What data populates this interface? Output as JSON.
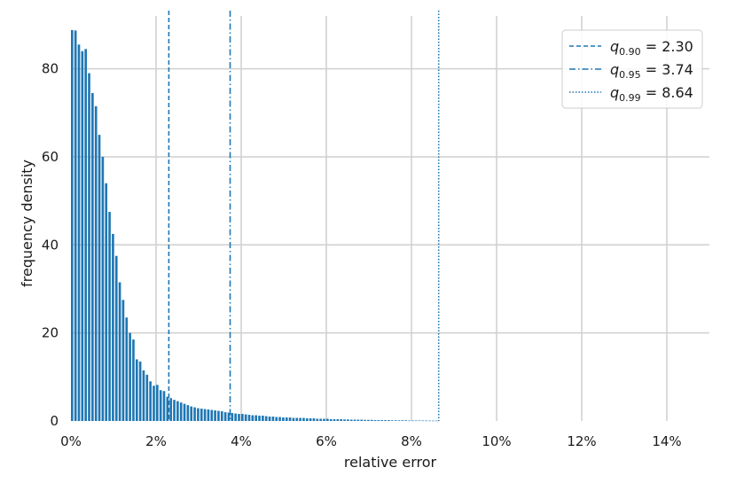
{
  "chart_data": {
    "type": "bar",
    "xlabel": "relative error",
    "ylabel": "frequency density",
    "xlim": [
      0,
      15
    ],
    "ylim": [
      0,
      92
    ],
    "x_ticks": [
      0,
      2,
      4,
      6,
      8,
      10,
      12,
      14
    ],
    "x_tick_labels": [
      "0%",
      "2%",
      "4%",
      "6%",
      "8%",
      "10%",
      "12%",
      "14%"
    ],
    "y_ticks": [
      0,
      20,
      40,
      60,
      80
    ],
    "y_tick_labels": [
      "0",
      "20",
      "40",
      "60",
      "80"
    ],
    "grid": true,
    "bar_color": "#1f77b4",
    "bin_width": 0.08,
    "bins": [
      {
        "x": 0.0,
        "y": 88.8
      },
      {
        "x": 0.08,
        "y": 88.7
      },
      {
        "x": 0.16,
        "y": 85.5
      },
      {
        "x": 0.24,
        "y": 84.0
      },
      {
        "x": 0.32,
        "y": 84.5
      },
      {
        "x": 0.4,
        "y": 79.0
      },
      {
        "x": 0.48,
        "y": 74.5
      },
      {
        "x": 0.56,
        "y": 71.5
      },
      {
        "x": 0.64,
        "y": 65.0
      },
      {
        "x": 0.72,
        "y": 60.0
      },
      {
        "x": 0.8,
        "y": 54.0
      },
      {
        "x": 0.88,
        "y": 47.5
      },
      {
        "x": 0.96,
        "y": 42.5
      },
      {
        "x": 1.04,
        "y": 37.5
      },
      {
        "x": 1.12,
        "y": 31.5
      },
      {
        "x": 1.2,
        "y": 27.5
      },
      {
        "x": 1.28,
        "y": 23.5
      },
      {
        "x": 1.36,
        "y": 20.0
      },
      {
        "x": 1.44,
        "y": 18.5
      },
      {
        "x": 1.52,
        "y": 14.0
      },
      {
        "x": 1.6,
        "y": 13.5
      },
      {
        "x": 1.68,
        "y": 11.5
      },
      {
        "x": 1.76,
        "y": 10.5
      },
      {
        "x": 1.84,
        "y": 9.0
      },
      {
        "x": 1.92,
        "y": 8.0
      },
      {
        "x": 2.0,
        "y": 8.2
      },
      {
        "x": 2.08,
        "y": 7.0
      },
      {
        "x": 2.16,
        "y": 6.8
      },
      {
        "x": 2.24,
        "y": 5.5
      },
      {
        "x": 2.32,
        "y": 5.2
      },
      {
        "x": 2.4,
        "y": 4.8
      },
      {
        "x": 2.48,
        "y": 4.5
      },
      {
        "x": 2.56,
        "y": 4.2
      },
      {
        "x": 2.64,
        "y": 3.9
      },
      {
        "x": 2.72,
        "y": 3.6
      },
      {
        "x": 2.8,
        "y": 3.3
      },
      {
        "x": 2.88,
        "y": 3.1
      },
      {
        "x": 2.96,
        "y": 2.9
      },
      {
        "x": 3.04,
        "y": 2.8
      },
      {
        "x": 3.12,
        "y": 2.7
      },
      {
        "x": 3.2,
        "y": 2.6
      },
      {
        "x": 3.28,
        "y": 2.5
      },
      {
        "x": 3.36,
        "y": 2.4
      },
      {
        "x": 3.44,
        "y": 2.3
      },
      {
        "x": 3.52,
        "y": 2.2
      },
      {
        "x": 3.6,
        "y": 2.0
      },
      {
        "x": 3.68,
        "y": 1.9
      },
      {
        "x": 3.76,
        "y": 1.8
      },
      {
        "x": 3.84,
        "y": 1.7
      },
      {
        "x": 3.92,
        "y": 1.6
      },
      {
        "x": 4.0,
        "y": 1.6
      },
      {
        "x": 4.08,
        "y": 1.5
      },
      {
        "x": 4.16,
        "y": 1.4
      },
      {
        "x": 4.24,
        "y": 1.3
      },
      {
        "x": 4.32,
        "y": 1.3
      },
      {
        "x": 4.4,
        "y": 1.2
      },
      {
        "x": 4.48,
        "y": 1.2
      },
      {
        "x": 4.56,
        "y": 1.1
      },
      {
        "x": 4.64,
        "y": 1.0
      },
      {
        "x": 4.72,
        "y": 1.0
      },
      {
        "x": 4.8,
        "y": 0.9
      },
      {
        "x": 4.88,
        "y": 0.9
      },
      {
        "x": 4.96,
        "y": 0.8
      },
      {
        "x": 5.04,
        "y": 0.8
      },
      {
        "x": 5.12,
        "y": 0.8
      },
      {
        "x": 5.2,
        "y": 0.7
      },
      {
        "x": 5.28,
        "y": 0.7
      },
      {
        "x": 5.36,
        "y": 0.7
      },
      {
        "x": 5.44,
        "y": 0.7
      },
      {
        "x": 5.52,
        "y": 0.6
      },
      {
        "x": 5.6,
        "y": 0.6
      },
      {
        "x": 5.68,
        "y": 0.6
      },
      {
        "x": 5.76,
        "y": 0.5
      },
      {
        "x": 5.84,
        "y": 0.5
      },
      {
        "x": 5.92,
        "y": 0.5
      },
      {
        "x": 6.0,
        "y": 0.5
      },
      {
        "x": 6.08,
        "y": 0.4
      },
      {
        "x": 6.16,
        "y": 0.4
      },
      {
        "x": 6.24,
        "y": 0.4
      },
      {
        "x": 6.32,
        "y": 0.4
      },
      {
        "x": 6.4,
        "y": 0.35
      },
      {
        "x": 6.48,
        "y": 0.35
      },
      {
        "x": 6.56,
        "y": 0.3
      },
      {
        "x": 6.64,
        "y": 0.3
      },
      {
        "x": 6.72,
        "y": 0.3
      },
      {
        "x": 6.8,
        "y": 0.3
      },
      {
        "x": 6.88,
        "y": 0.25
      },
      {
        "x": 6.96,
        "y": 0.25
      },
      {
        "x": 7.04,
        "y": 0.25
      },
      {
        "x": 7.12,
        "y": 0.2
      },
      {
        "x": 7.2,
        "y": 0.2
      },
      {
        "x": 7.28,
        "y": 0.2
      },
      {
        "x": 7.36,
        "y": 0.2
      },
      {
        "x": 7.44,
        "y": 0.2
      },
      {
        "x": 7.52,
        "y": 0.15
      },
      {
        "x": 7.6,
        "y": 0.15
      },
      {
        "x": 7.68,
        "y": 0.15
      },
      {
        "x": 7.76,
        "y": 0.15
      },
      {
        "x": 7.84,
        "y": 0.15
      },
      {
        "x": 7.92,
        "y": 0.1
      },
      {
        "x": 8.0,
        "y": 0.1
      },
      {
        "x": 8.08,
        "y": 0.1
      },
      {
        "x": 8.16,
        "y": 0.1
      },
      {
        "x": 8.24,
        "y": 0.1
      },
      {
        "x": 8.32,
        "y": 0.1
      },
      {
        "x": 8.4,
        "y": 0.08
      },
      {
        "x": 8.48,
        "y": 0.08
      },
      {
        "x": 8.56,
        "y": 0.08
      }
    ],
    "quantile_lines": [
      {
        "q": "0.90",
        "value": 2.3,
        "value_label": "2.30",
        "style": "dashed"
      },
      {
        "q": "0.95",
        "value": 3.74,
        "value_label": "3.74",
        "style": "dashdot"
      },
      {
        "q": "0.99",
        "value": 8.64,
        "value_label": "8.64",
        "style": "dotted"
      }
    ],
    "legend_position": "top-right",
    "line_color": "#1f77b4"
  }
}
